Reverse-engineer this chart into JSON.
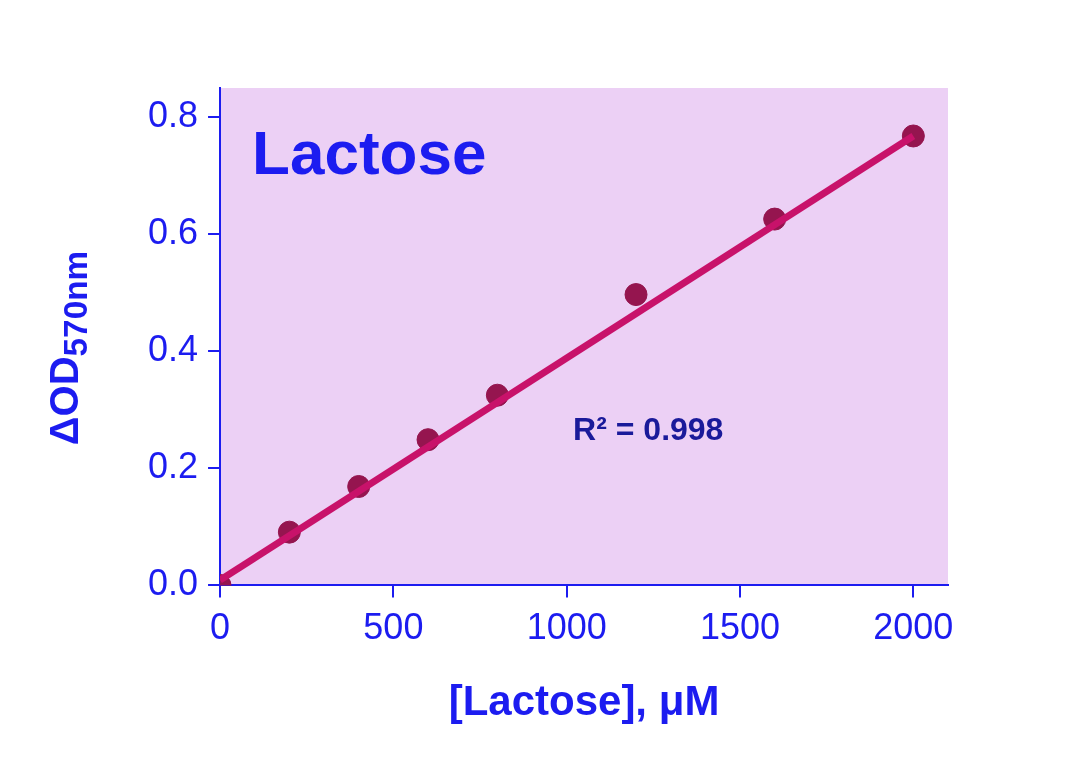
{
  "chart_data": {
    "type": "scatter",
    "title": "Lactose",
    "xlabel": "[Lactose], μM",
    "ylabel": "ΔOD$_{570nm}$",
    "xlim": [
      0,
      2100
    ],
    "xticks": [
      0,
      500,
      1000,
      1500,
      2000
    ],
    "ylim": [
      0,
      0.85
    ],
    "yticks": [
      {
        "value": 0,
        "label": "0.0"
      },
      0.2,
      0.4,
      0.6,
      0.8
    ],
    "grid": false,
    "legend": false,
    "marker": "circle",
    "series": [
      {
        "type": "line",
        "color": "#c8126a",
        "marker": "none",
        "x": [
          0,
          2000
        ],
        "values": [
          0.009,
          0.768
        ]
      },
      {
        "color": "#95154f",
        "x": [
          0,
          200,
          400,
          600,
          800,
          1200,
          1600,
          2000
        ],
        "values": [
          0,
          0.091,
          0.169,
          0.249,
          0.325,
          0.497,
          0.626,
          0.768
        ]
      }
    ],
    "annotations": [
      "R² = 0.998"
    ]
  }
}
